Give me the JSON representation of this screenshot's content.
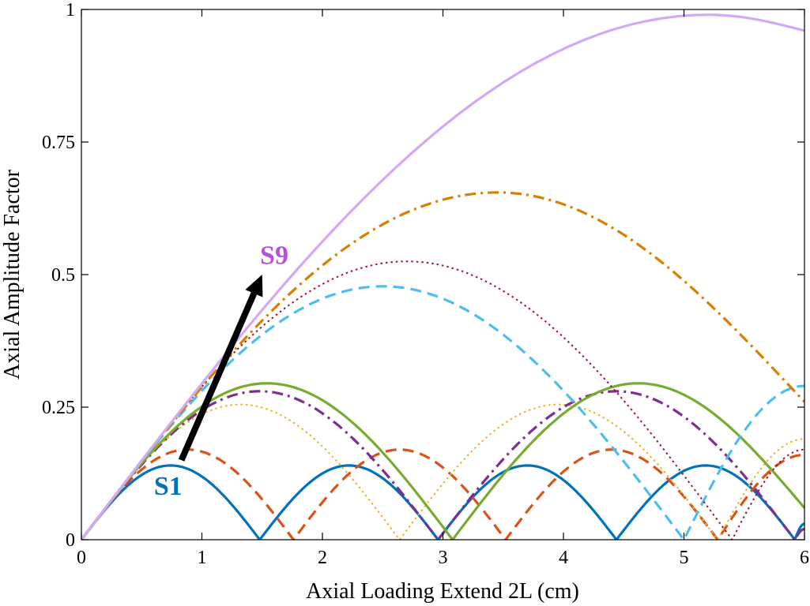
{
  "chart_data": {
    "type": "line",
    "title": "",
    "xlabel": "Axial Loading Extend 2L (cm)",
    "ylabel": "Axial Amplitude Factor",
    "xlim": [
      0,
      6
    ],
    "ylim": [
      0,
      1
    ],
    "xticks": [
      "0",
      "1",
      "2",
      "3",
      "4",
      "5",
      "6"
    ],
    "yticks": [
      "0",
      "0.25",
      "0.5",
      "0.75",
      "1"
    ],
    "grid": false,
    "series": [
      {
        "color": "#0072BD",
        "style": "solid",
        "x": [
          0,
          0.74,
          1.48,
          2.22,
          2.96,
          3.7,
          4.44,
          5.18,
          5.92,
          6.0
        ],
        "y": [
          0,
          0.14,
          0,
          0.14,
          0,
          0.14,
          0,
          0.14,
          0,
          0.03
        ]
      },
      {
        "color": "#D95319",
        "style": "dashed",
        "x": [
          0,
          0.88,
          1.76,
          2.64,
          3.52,
          4.4,
          5.28,
          6.0
        ],
        "y": [
          0,
          0.17,
          0,
          0.17,
          0,
          0.17,
          0,
          0.16
        ]
      },
      {
        "color": "#EDB120",
        "style": "dotted",
        "x": [
          0,
          1.32,
          2.64,
          3.96,
          5.28,
          6.0
        ],
        "y": [
          0,
          0.255,
          0,
          0.255,
          0,
          0.19
        ]
      },
      {
        "color": "#7E2F8E",
        "style": "dashdot",
        "x": [
          0,
          1.48,
          2.96,
          4.44,
          5.92,
          6.0
        ],
        "y": [
          0,
          0.28,
          0,
          0.28,
          0,
          0.02
        ]
      },
      {
        "color": "#77AC30",
        "style": "solid",
        "x": [
          0,
          1.54,
          3.08,
          4.62,
          6.0
        ],
        "y": [
          0,
          0.295,
          0,
          0.295,
          0.06
        ]
      },
      {
        "color": "#4DBEEE",
        "style": "dashed",
        "x": [
          0,
          2.5,
          5.0,
          6.0
        ],
        "y": [
          0,
          0.478,
          0,
          0.29
        ]
      },
      {
        "color": "#A2142F",
        "style": "dotted",
        "x": [
          0,
          2.7,
          5.4,
          6.0
        ],
        "y": [
          0,
          0.525,
          0,
          0.17
        ]
      },
      {
        "color": "#D97F00",
        "style": "dashdot",
        "x": [
          0,
          3.45,
          6.0
        ],
        "y": [
          0,
          0.655,
          0.26
        ]
      },
      {
        "color": "#D4A9F4",
        "style": "solid",
        "x": [
          0,
          5.2,
          6.0
        ],
        "y": [
          0,
          0.99,
          0.96
        ]
      }
    ],
    "annotations": [
      {
        "text": "S1",
        "x": 0.72,
        "y": 0.085,
        "color": "#0072BD"
      },
      {
        "text": "S9",
        "x": 1.6,
        "y": 0.52,
        "color": "#B44FE0"
      }
    ],
    "arrow": {
      "from": [
        0.83,
        0.15
      ],
      "to": [
        1.5,
        0.5
      ],
      "color": "#000000"
    }
  }
}
